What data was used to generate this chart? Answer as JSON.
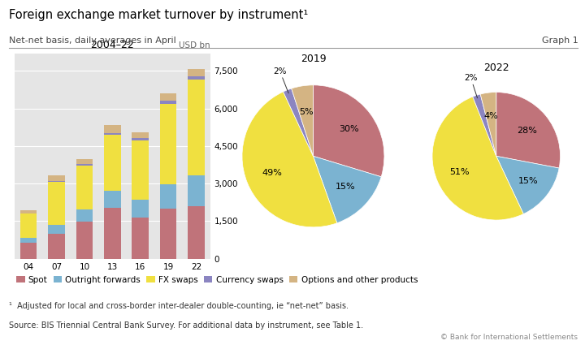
{
  "title": "Foreign exchange market turnover by instrument¹",
  "subtitle": "Net-net basis, daily averages in April",
  "graph_label": "Graph 1",
  "footnote1": "¹  Adjusted for local and cross-border inter-dealer double-counting, ie “net-net” basis.",
  "footnote2": "Source: BIS Triennial Central Bank Survey. For additional data by instrument, see Table 1.",
  "copyright": "© Bank for International Settlements",
  "bar_years": [
    "04",
    "07",
    "10",
    "13",
    "16",
    "19",
    "22"
  ],
  "bar_data": {
    "Spot": [
      631,
      1005,
      1489,
      2047,
      1652,
      1987,
      2107
    ],
    "Outright forwards": [
      209,
      362,
      475,
      680,
      700,
      999,
      1224
    ],
    "FX swaps": [
      954,
      1714,
      1765,
      2228,
      2378,
      3202,
      3824
    ],
    "Currency swaps": [
      21,
      31,
      43,
      54,
      82,
      124,
      124
    ],
    "Options": [
      119,
      212,
      207,
      337,
      254,
      294,
      304
    ]
  },
  "bar_colors": {
    "Spot": "#c0737a",
    "Outright forwards": "#7bb3d1",
    "FX swaps": "#f0e040",
    "Currency swaps": "#8b85c1",
    "Options": "#d4b483"
  },
  "bar_ylabel": "USD bn",
  "bar_ylim": [
    0,
    8200
  ],
  "bar_yticks": [
    0,
    1500,
    3000,
    4500,
    6000,
    7500
  ],
  "pie2019_title": "2019",
  "pie2019_values": [
    30,
    15,
    49,
    2,
    5
  ],
  "pie2019_labels": [
    "30%",
    "15%",
    "49%",
    "2%",
    "5%"
  ],
  "pie2022_title": "2022",
  "pie2022_values": [
    28,
    15,
    51,
    2,
    4
  ],
  "pie2022_labels": [
    "28%",
    "15%",
    "51%",
    "2%",
    "4%"
  ],
  "pie_colors": [
    "#c0737a",
    "#7bb3d1",
    "#f0e040",
    "#8b85c1",
    "#d4b483"
  ],
  "legend_items": [
    "Spot",
    "Outright forwards",
    "FX swaps",
    "Currency swaps",
    "Options and other products"
  ],
  "legend_colors": [
    "#c0737a",
    "#7bb3d1",
    "#f0e040",
    "#8b85c1",
    "#d4b483"
  ],
  "bar_title": "2004–22",
  "bar_stack_order": [
    "Spot",
    "Outright forwards",
    "FX swaps",
    "Currency swaps",
    "Options"
  ]
}
